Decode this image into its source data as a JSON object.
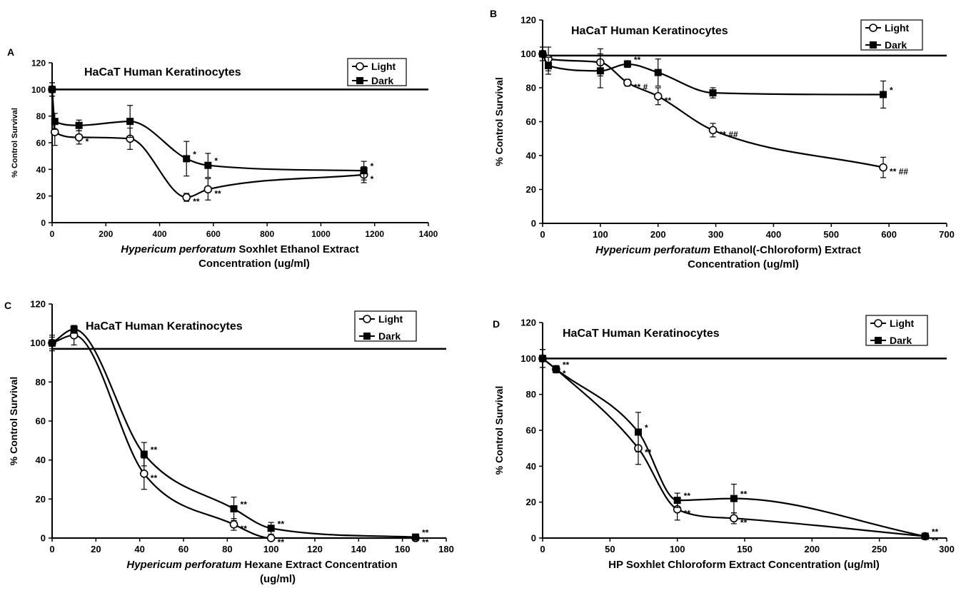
{
  "figure": {
    "title": ""
  },
  "chart_data": [
    {
      "type": "line",
      "panel_letter": "A",
      "title": "HaCaT Human Keratinocytes",
      "xlabel_italic": "Hypericum perforatum",
      "xlabel_rest": " Soxhlet Ethanol Extract",
      "xlabel_line2": "Concentration (ug/ml)",
      "ylabel": "% Control Survival",
      "xlim": [
        0,
        1400
      ],
      "ylim": [
        0,
        120
      ],
      "xticks": [
        "0",
        "200",
        "400",
        "600",
        "800",
        "1000",
        "1200",
        "1400"
      ],
      "yticks": [
        "0",
        "20",
        "40",
        "60",
        "80",
        "100",
        "120"
      ],
      "reference_line": 100,
      "legend": [
        "Light",
        "Dark"
      ],
      "legend_position": "top-right",
      "series": [
        {
          "name": "Light",
          "marker": "open-circle",
          "x": [
            0,
            10,
            100,
            290,
            500,
            580,
            1160
          ],
          "y": [
            100,
            68,
            64,
            63,
            19,
            25,
            36
          ],
          "err": [
            5,
            10,
            5,
            8,
            3,
            8,
            6
          ],
          "annotations": [
            "",
            "",
            "*",
            "",
            "**",
            "**",
            "*"
          ]
        },
        {
          "name": "Dark",
          "marker": "filled-square",
          "x": [
            0,
            10,
            100,
            290,
            500,
            580,
            1160
          ],
          "y": [
            100,
            76,
            73,
            76,
            48,
            43,
            39
          ],
          "err": [
            5,
            6,
            4,
            12,
            13,
            9,
            7
          ],
          "annotations": [
            "",
            "",
            "",
            "",
            "*",
            "*",
            "*"
          ]
        }
      ]
    },
    {
      "type": "line",
      "panel_letter": "B",
      "title": "HaCaT Human Keratinocytes",
      "xlabel_italic": "Hypericum perforatum",
      "xlabel_rest": " Ethanol(-Chloroform) Extract",
      "xlabel_line2": "Concentration (ug/ml)",
      "ylabel": "% Control Survival",
      "xlim": [
        0,
        700
      ],
      "ylim": [
        0,
        120
      ],
      "xticks": [
        "0",
        "100",
        "200",
        "300",
        "400",
        "500",
        "600",
        "700"
      ],
      "yticks": [
        "0",
        "20",
        "40",
        "60",
        "80",
        "100",
        "120"
      ],
      "reference_line": 99,
      "legend": [
        "Light",
        "Dark"
      ],
      "legend_position": "top-right",
      "series": [
        {
          "name": "Light",
          "marker": "open-circle",
          "x": [
            0,
            10,
            100,
            147,
            200,
            295,
            590
          ],
          "y": [
            100,
            97,
            95,
            83,
            75,
            55,
            33
          ],
          "err": [
            4,
            7,
            8,
            2,
            5,
            4,
            6
          ],
          "annotations": [
            "",
            "",
            "",
            "** #",
            "**",
            "** ##",
            "** ##"
          ]
        },
        {
          "name": "Dark",
          "marker": "filled-square",
          "x": [
            0,
            10,
            100,
            147,
            200,
            295,
            590
          ],
          "y": [
            100,
            93,
            90,
            94,
            89,
            77,
            76
          ],
          "err": [
            4,
            5,
            10,
            2,
            8,
            3,
            8
          ],
          "annotations": [
            "",
            "",
            "",
            "**",
            "",
            "",
            "*"
          ]
        }
      ]
    },
    {
      "type": "line",
      "panel_letter": "C",
      "title": "HaCaT Human Keratinocytes",
      "xlabel_italic": "Hypericum perforatum",
      "xlabel_rest": " Hexane Extract Concentration",
      "xlabel_line2": "(ug/ml)",
      "ylabel": "% Control Survival",
      "xlim": [
        0,
        180
      ],
      "ylim": [
        0,
        120
      ],
      "xticks": [
        "0",
        "20",
        "40",
        "60",
        "80",
        "100",
        "120",
        "140",
        "160",
        "180"
      ],
      "yticks": [
        "0",
        "20",
        "40",
        "60",
        "80",
        "100",
        "120"
      ],
      "reference_line": 97,
      "legend": [
        "Light",
        "Dark"
      ],
      "legend_position": "top-right",
      "series": [
        {
          "name": "Light",
          "marker": "open-circle",
          "x": [
            0,
            10,
            42,
            83,
            100,
            166
          ],
          "y": [
            100,
            104,
            33,
            7,
            0,
            0
          ],
          "err": [
            4,
            5,
            8,
            3,
            0,
            0
          ],
          "annotations": [
            "",
            "",
            "**",
            "**",
            "**",
            "**"
          ]
        },
        {
          "name": "Dark",
          "marker": "filled-square",
          "x": [
            0,
            10,
            42,
            83,
            100,
            166
          ],
          "y": [
            100,
            107,
            43,
            15,
            5,
            0.5
          ],
          "err": [
            3,
            2,
            6,
            6,
            3,
            0
          ],
          "annotations": [
            "",
            "",
            "**",
            "**",
            "**",
            "**"
          ]
        }
      ]
    },
    {
      "type": "line",
      "panel_letter": "D",
      "title": "HaCaT Human Keratinocytes",
      "xlabel_italic": "",
      "xlabel_rest": "HP Soxhlet Chloroform Extract Concentration (ug/ml)",
      "xlabel_line2": "",
      "ylabel": "% Control Survival",
      "xlim": [
        0,
        300
      ],
      "ylim": [
        0,
        120
      ],
      "xticks": [
        "0",
        "50",
        "100",
        "150",
        "200",
        "250",
        "300"
      ],
      "yticks": [
        "0",
        "20",
        "40",
        "60",
        "80",
        "100",
        "120"
      ],
      "reference_line": 100,
      "legend": [
        "Light",
        "Dark"
      ],
      "legend_position": "top-right",
      "series": [
        {
          "name": "Light",
          "marker": "open-circle",
          "x": [
            0,
            10,
            71,
            100,
            142,
            284
          ],
          "y": [
            100,
            94,
            50,
            16,
            11,
            1
          ],
          "err": [
            5,
            2,
            9,
            6,
            3,
            0
          ],
          "annotations": [
            "",
            "*",
            "**",
            "**",
            "**",
            "**"
          ]
        },
        {
          "name": "Dark",
          "marker": "filled-square",
          "x": [
            0,
            10,
            71,
            100,
            142,
            284
          ],
          "y": [
            100,
            94,
            59,
            21,
            22,
            1
          ],
          "err": [
            5,
            2,
            11,
            4,
            8,
            0
          ],
          "annotations": [
            "",
            "**",
            "*",
            "**",
            "**",
            "**"
          ]
        }
      ]
    }
  ]
}
